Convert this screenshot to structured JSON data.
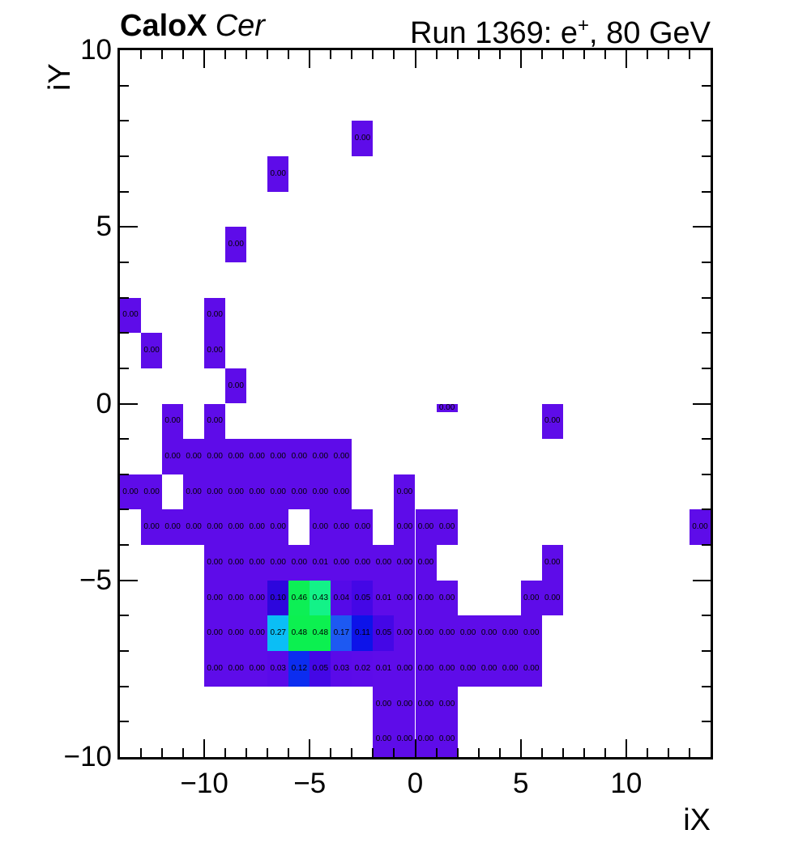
{
  "header": {
    "experiment": "CaloX",
    "detector": "Cer",
    "run_pre": "Run 1369: e",
    "run_sup": "+",
    "run_post": ", 80 GeV"
  },
  "axes": {
    "x": {
      "title": "iX",
      "min": -14,
      "max": 14,
      "ticks": [
        -10,
        -5,
        0,
        5,
        10
      ],
      "tick_labels": [
        "−10",
        "−5",
        "0",
        "5",
        "10"
      ]
    },
    "y": {
      "title": "iY",
      "min": -10,
      "max": 10,
      "ticks": [
        -10,
        -5,
        0,
        5,
        10
      ],
      "tick_labels": [
        "−10",
        "−5",
        "0",
        "5",
        "10"
      ]
    }
  },
  "palette": {
    "0.00": "#5e0ce9",
    "0.01": "#5e0ce9",
    "0.02": "#5c0be9",
    "0.03": "#5a0ae9",
    "0.04": "#550ae8",
    "0.05": "#4407e6",
    "0.10": "#2d06dd",
    "0.11": "#0d13e9",
    "0.12": "#0c2df0",
    "0.17": "#1d59f2",
    "0.27": "#0bbef5",
    "0.43": "#13f288",
    "0.46": "#0def55",
    "0.48": "#0cf050"
  },
  "chart_data": {
    "type": "heatmap",
    "title": "Run 1369: e+, 80 GeV",
    "subtitle": "CaloX Cer",
    "xlabel": "iX",
    "ylabel": "iY",
    "xlim": [
      -14,
      14
    ],
    "ylim": [
      -10,
      10
    ],
    "grid": false,
    "legend": "none",
    "cell_note": "each entry is [iX_low_edge, iY_low_edge, value_label, optional_height_units]",
    "cells": [
      [
        -3,
        7,
        "0.00"
      ],
      [
        -7,
        6,
        "0.00"
      ],
      [
        -9,
        4,
        "0.00"
      ],
      [
        -14,
        2,
        "0.00"
      ],
      [
        -10,
        2,
        "0.00"
      ],
      [
        -13,
        1,
        "0.00"
      ],
      [
        -10,
        1,
        "0.00"
      ],
      [
        -9,
        0,
        "0.00"
      ],
      [
        -12,
        -1,
        "0.00"
      ],
      [
        -10,
        -1,
        "0.00"
      ],
      [
        1,
        -0.25,
        "0.00",
        0.25
      ],
      [
        6,
        -1,
        "0.00"
      ],
      [
        -12,
        -2,
        "0.00"
      ],
      [
        -11,
        -2,
        "0.00"
      ],
      [
        -10,
        -2,
        "0.00"
      ],
      [
        -9,
        -2,
        "0.00"
      ],
      [
        -8,
        -2,
        "0.00"
      ],
      [
        -7,
        -2,
        "0.00"
      ],
      [
        -6,
        -2,
        "0.00"
      ],
      [
        -5,
        -2,
        "0.00"
      ],
      [
        -4,
        -2,
        "0.00"
      ],
      [
        -14,
        -3,
        "0.00"
      ],
      [
        -13,
        -3,
        "0.00"
      ],
      [
        -11,
        -3,
        "0.00"
      ],
      [
        -10,
        -3,
        "0.00"
      ],
      [
        -9,
        -3,
        "0.00"
      ],
      [
        -8,
        -3,
        "0.00"
      ],
      [
        -7,
        -3,
        "0.00"
      ],
      [
        -6,
        -3,
        "0.00"
      ],
      [
        -5,
        -3,
        "0.00"
      ],
      [
        -4,
        -3,
        "0.00"
      ],
      [
        -1,
        -3,
        "0.00"
      ],
      [
        -13,
        -4,
        "0.00"
      ],
      [
        -12,
        -4,
        "0.00"
      ],
      [
        -11,
        -4,
        "0.00"
      ],
      [
        -10,
        -4,
        "0.00"
      ],
      [
        -9,
        -4,
        "0.00"
      ],
      [
        -8,
        -4,
        "0.00"
      ],
      [
        -7,
        -4,
        "0.00"
      ],
      [
        -5,
        -4,
        "0.00"
      ],
      [
        -4,
        -4,
        "0.00"
      ],
      [
        -3,
        -4,
        "0.00"
      ],
      [
        -1,
        -4,
        "0.00"
      ],
      [
        0,
        -4,
        "0.00"
      ],
      [
        1,
        -4,
        "0.00"
      ],
      [
        13,
        -4,
        "0.00"
      ],
      [
        -10,
        -5,
        "0.00"
      ],
      [
        -9,
        -5,
        "0.00"
      ],
      [
        -8,
        -5,
        "0.00"
      ],
      [
        -7,
        -5,
        "0.00"
      ],
      [
        -6,
        -5,
        "0.00"
      ],
      [
        -5,
        -5,
        "0.01"
      ],
      [
        -4,
        -5,
        "0.00"
      ],
      [
        -3,
        -5,
        "0.00"
      ],
      [
        -2,
        -5,
        "0.00"
      ],
      [
        -1,
        -5,
        "0.00"
      ],
      [
        0,
        -5,
        "0.00"
      ],
      [
        6,
        -5,
        "0.00"
      ],
      [
        -10,
        -6,
        "0.00"
      ],
      [
        -9,
        -6,
        "0.00"
      ],
      [
        -8,
        -6,
        "0.00"
      ],
      [
        -7,
        -6,
        "0.10"
      ],
      [
        -6,
        -6,
        "0.46"
      ],
      [
        -5,
        -6,
        "0.43"
      ],
      [
        -4,
        -6,
        "0.04"
      ],
      [
        -3,
        -6,
        "0.05"
      ],
      [
        -2,
        -6,
        "0.01"
      ],
      [
        -1,
        -6,
        "0.00"
      ],
      [
        0,
        -6,
        "0.00"
      ],
      [
        1,
        -6,
        "0.00"
      ],
      [
        5,
        -6,
        "0.00"
      ],
      [
        6,
        -6,
        "0.00"
      ],
      [
        -10,
        -7,
        "0.00"
      ],
      [
        -9,
        -7,
        "0.00"
      ],
      [
        -8,
        -7,
        "0.00"
      ],
      [
        -7,
        -7,
        "0.27"
      ],
      [
        -6,
        -7,
        "0.48"
      ],
      [
        -5,
        -7,
        "0.48"
      ],
      [
        -4,
        -7,
        "0.17"
      ],
      [
        -3,
        -7,
        "0.11"
      ],
      [
        -2,
        -7,
        "0.05"
      ],
      [
        -1,
        -7,
        "0.00"
      ],
      [
        0,
        -7,
        "0.00"
      ],
      [
        1,
        -7,
        "0.00"
      ],
      [
        2,
        -7,
        "0.00"
      ],
      [
        3,
        -7,
        "0.00"
      ],
      [
        4,
        -7,
        "0.00"
      ],
      [
        5,
        -7,
        "0.00"
      ],
      [
        -10,
        -8,
        "0.00"
      ],
      [
        -9,
        -8,
        "0.00"
      ],
      [
        -8,
        -8,
        "0.00"
      ],
      [
        -7,
        -8,
        "0.03"
      ],
      [
        -6,
        -8,
        "0.12"
      ],
      [
        -5,
        -8,
        "0.05"
      ],
      [
        -4,
        -8,
        "0.03"
      ],
      [
        -3,
        -8,
        "0.02"
      ],
      [
        -2,
        -8,
        "0.01"
      ],
      [
        -1,
        -8,
        "0.00"
      ],
      [
        0,
        -8,
        "0.00"
      ],
      [
        1,
        -8,
        "0.00"
      ],
      [
        2,
        -8,
        "0.00"
      ],
      [
        3,
        -8,
        "0.00"
      ],
      [
        4,
        -8,
        "0.00"
      ],
      [
        5,
        -8,
        "0.00"
      ],
      [
        -2,
        -9,
        "0.00"
      ],
      [
        -1,
        -9,
        "0.00"
      ],
      [
        0,
        -9,
        "0.00"
      ],
      [
        1,
        -9,
        "0.00"
      ],
      [
        -2,
        -10,
        "0.00"
      ],
      [
        -1,
        -10,
        "0.00"
      ],
      [
        0,
        -10,
        "0.00"
      ],
      [
        1,
        -10,
        "0.00"
      ]
    ]
  }
}
